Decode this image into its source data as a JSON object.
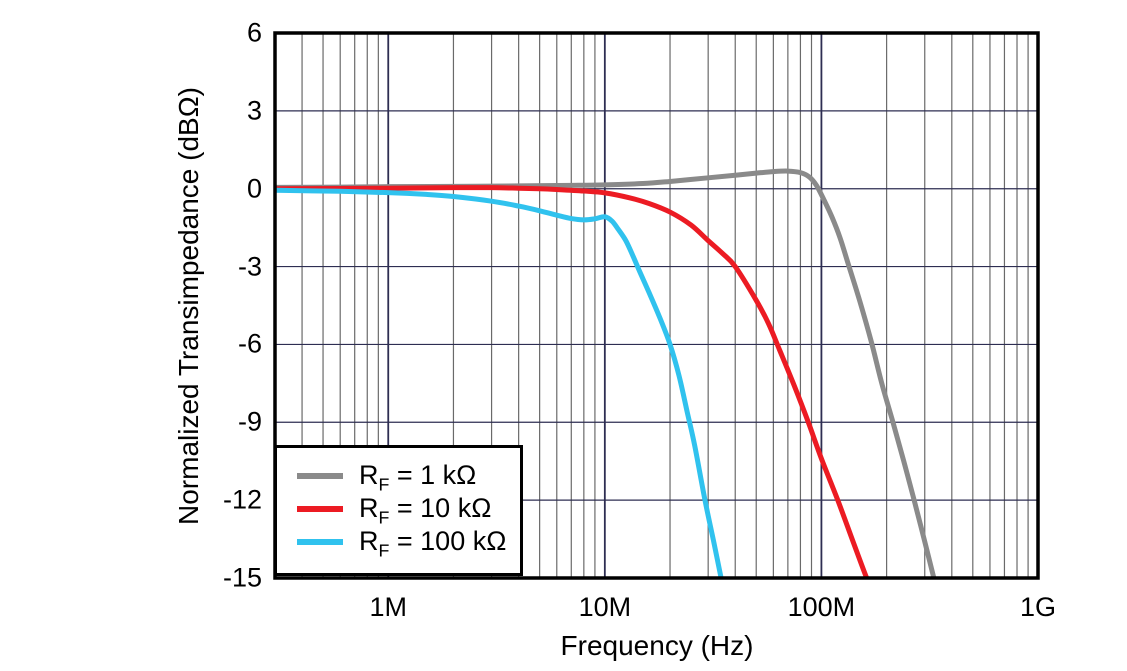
{
  "figure": {
    "background": "#ffffff",
    "frame_color": "#000000"
  },
  "chart_data": {
    "type": "line",
    "title": "",
    "xlabel": "Frequency (Hz)",
    "ylabel": "Normalized Transimpedance (dBΩ)",
    "x_scale": "log",
    "x_range_hz": [
      300000,
      1000000000
    ],
    "x_ticks": [
      {
        "value": 1000000,
        "label": "1M"
      },
      {
        "value": 10000000,
        "label": "10M"
      },
      {
        "value": 100000000,
        "label": "100M"
      },
      {
        "value": 1000000000,
        "label": "1G"
      }
    ],
    "y_range_db": [
      -15,
      6
    ],
    "y_tick_step": 3,
    "y_ticks": [
      6,
      3,
      0,
      -3,
      -6,
      -9,
      -12,
      -15
    ],
    "grid": {
      "vertical_minor": true,
      "horizontal_minor": false,
      "minor_color": "#6a6a6a",
      "major_color": "#2e2e52",
      "horizontal_color": "#2e2e52"
    },
    "legend_position": "bottom-left",
    "series": [
      {
        "id": "rf-1k",
        "name": "RF = 1 kΩ",
        "label": {
          "base": "R",
          "sub": "F",
          "rest": " = 1 kΩ"
        },
        "color": "#8a8a8a",
        "points": [
          [
            300000,
            0.05
          ],
          [
            600000,
            0.06
          ],
          [
            1000000,
            0.08
          ],
          [
            2000000,
            0.09
          ],
          [
            4000000,
            0.11
          ],
          [
            7000000,
            0.13
          ],
          [
            10000000,
            0.15
          ],
          [
            15000000,
            0.2
          ],
          [
            20000000,
            0.28
          ],
          [
            30000000,
            0.42
          ],
          [
            40000000,
            0.52
          ],
          [
            50000000,
            0.6
          ],
          [
            60000000,
            0.66
          ],
          [
            70000000,
            0.68
          ],
          [
            80000000,
            0.62
          ],
          [
            88000000,
            0.45
          ],
          [
            95000000,
            0.12
          ],
          [
            103000000,
            -0.45
          ],
          [
            112000000,
            -1.1
          ],
          [
            122000000,
            -1.9
          ],
          [
            133000000,
            -2.9
          ],
          [
            150000000,
            -4.3
          ],
          [
            170000000,
            -5.9
          ],
          [
            190000000,
            -7.5
          ],
          [
            214000000,
            -9.0
          ],
          [
            240000000,
            -10.5
          ],
          [
            268000000,
            -12.0
          ],
          [
            300000000,
            -13.6
          ],
          [
            335000000,
            -15.2
          ]
        ]
      },
      {
        "id": "rf-10k",
        "name": "RF = 10 kΩ",
        "label": {
          "base": "R",
          "sub": "F",
          "rest": " = 10 kΩ"
        },
        "color": "#ec1b23",
        "points": [
          [
            300000,
            0.0
          ],
          [
            1000000,
            0.02
          ],
          [
            2000000,
            0.04
          ],
          [
            3000000,
            0.04
          ],
          [
            4000000,
            0.02
          ],
          [
            5000000,
            0.0
          ],
          [
            6000000,
            -0.03
          ],
          [
            8000000,
            -0.09
          ],
          [
            10000000,
            -0.16
          ],
          [
            13000000,
            -0.35
          ],
          [
            16000000,
            -0.57
          ],
          [
            20000000,
            -0.9
          ],
          [
            25000000,
            -1.4
          ],
          [
            30000000,
            -2.0
          ],
          [
            35000000,
            -2.5
          ],
          [
            40000000,
            -3.0
          ],
          [
            50000000,
            -4.3
          ],
          [
            57000000,
            -5.2
          ],
          [
            64000000,
            -6.2
          ],
          [
            75000000,
            -7.6
          ],
          [
            87000000,
            -9.0
          ],
          [
            100000000,
            -10.4
          ],
          [
            119000000,
            -12.0
          ],
          [
            140000000,
            -13.6
          ],
          [
            160000000,
            -14.9
          ],
          [
            168000000,
            -15.3
          ]
        ]
      },
      {
        "id": "rf-100k",
        "name": "RF = 100 kΩ",
        "label": {
          "base": "R",
          "sub": "F",
          "rest": " = 100 kΩ"
        },
        "color": "#30c2ee",
        "points": [
          [
            300000,
            -0.06
          ],
          [
            600000,
            -0.1
          ],
          [
            1000000,
            -0.15
          ],
          [
            1500000,
            -0.22
          ],
          [
            2000000,
            -0.3
          ],
          [
            3000000,
            -0.48
          ],
          [
            4000000,
            -0.67
          ],
          [
            5000000,
            -0.85
          ],
          [
            6000000,
            -1.02
          ],
          [
            7000000,
            -1.15
          ],
          [
            8000000,
            -1.2
          ],
          [
            9000000,
            -1.16
          ],
          [
            10000000,
            -1.08
          ],
          [
            10800000,
            -1.25
          ],
          [
            11500000,
            -1.55
          ],
          [
            12500000,
            -2.0
          ],
          [
            13500000,
            -2.6
          ],
          [
            14500000,
            -3.2
          ],
          [
            16000000,
            -4.0
          ],
          [
            18000000,
            -5.0
          ],
          [
            20000000,
            -6.0
          ],
          [
            22000000,
            -7.2
          ],
          [
            24000000,
            -8.6
          ],
          [
            26000000,
            -9.9
          ],
          [
            29000000,
            -12.0
          ],
          [
            32000000,
            -13.7
          ],
          [
            35000000,
            -15.3
          ]
        ]
      }
    ]
  }
}
